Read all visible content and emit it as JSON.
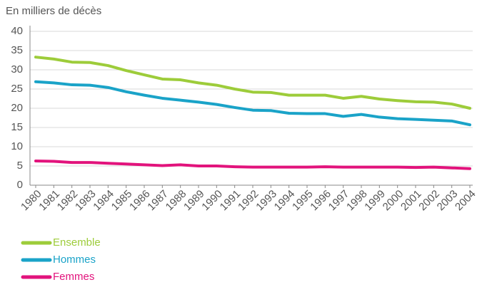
{
  "chart_data": {
    "type": "line",
    "y_axis_label": "En milliers de décès",
    "categories": [
      "1980",
      "1981",
      "1982",
      "1983",
      "1984",
      "1985",
      "1986",
      "1987",
      "1988",
      "1989",
      "1990",
      "1991",
      "1992",
      "1993",
      "1994",
      "1995",
      "1996",
      "1997",
      "1998",
      "1999",
      "2000",
      "2001",
      "2002",
      "2003",
      "2004"
    ],
    "series": [
      {
        "name": "Ensemble",
        "color": "#9dcc3a",
        "values": [
          33.3,
          32.8,
          32.0,
          31.9,
          31.1,
          29.8,
          28.7,
          27.6,
          27.4,
          26.6,
          26.0,
          25.0,
          24.2,
          24.1,
          23.4,
          23.4,
          23.4,
          22.6,
          23.1,
          22.4,
          22.0,
          21.7,
          21.6,
          21.1,
          20.0
        ]
      },
      {
        "name": "Hommes",
        "color": "#1aa3c8",
        "values": [
          26.9,
          26.6,
          26.1,
          26.0,
          25.4,
          24.3,
          23.4,
          22.6,
          22.1,
          21.6,
          21.0,
          20.2,
          19.5,
          19.4,
          18.7,
          18.6,
          18.6,
          17.9,
          18.4,
          17.7,
          17.3,
          17.1,
          16.9,
          16.7,
          15.7
        ]
      },
      {
        "name": "Femmes",
        "color": "#e2137c",
        "values": [
          6.3,
          6.2,
          5.9,
          5.9,
          5.7,
          5.5,
          5.3,
          5.1,
          5.3,
          5.0,
          5.0,
          4.8,
          4.7,
          4.7,
          4.7,
          4.7,
          4.8,
          4.7,
          4.7,
          4.7,
          4.7,
          4.6,
          4.7,
          4.5,
          4.3
        ]
      }
    ],
    "ylim": [
      0,
      40
    ],
    "yticks": [
      0,
      5,
      10,
      15,
      20,
      25,
      30,
      35,
      40
    ],
    "grid": true
  }
}
